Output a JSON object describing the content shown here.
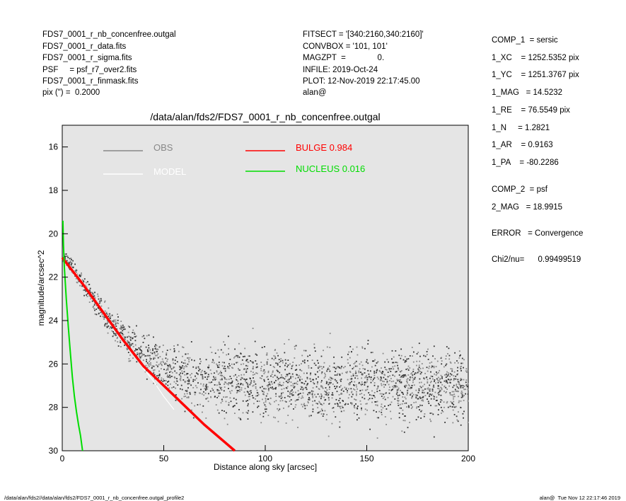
{
  "header_left": [
    "FDS7_0001_r_nb_concenfree.outgal",
    "FDS7_0001_r_data.fits",
    "FDS7_0001_r_sigma.fits",
    "PSF     = psf_r7_over2.fits",
    "FDS7_0001_r_finmask.fits",
    "pix (\") =  0.2000"
  ],
  "header_mid": [
    "FITSECT = '[340:2160,340:2160]'",
    "CONVBOX = '101, 101'",
    "MAGZPT  =              0.",
    "INFILE: 2019-Oct-24",
    "PLOT: 12-Nov-2019 22:17:45.00",
    "alan@"
  ],
  "params": [
    "COMP_1  = sersic",
    "1_XC    = 1252.5352 pix",
    "1_YC    = 1251.3767 pix",
    "1_MAG   = 14.5232",
    "1_RE    = 76.5549 pix",
    "1_N     = 1.2821",
    "1_AR    = 0.9163",
    "1_PA    = -80.2286",
    "COMP_2  = psf",
    "2_MAG   = 18.9915",
    "ERROR   = Convergence",
    "Chi2/nu=      0.99499519"
  ],
  "footer_left": "/data/alan/fds2//data/alan/fds2/FDS7_0001_r_nb_concenfree.outgal_profile2",
  "footer_right": "alan@  Tue Nov 12 22:17:46 2019",
  "chart_data": {
    "type": "scatter",
    "title": "/data/alan/fds2/FDS7_0001_r_nb_concenfree.outgal",
    "xlabel": "Distance along sky [arcsec]",
    "ylabel": "magnitude/arcsec^2",
    "xlim": [
      0,
      200
    ],
    "ylim": [
      30,
      15
    ],
    "y_inverted": true,
    "x_ticks": [
      "0",
      "50",
      "100",
      "150",
      "200"
    ],
    "y_ticks": [
      "16",
      "18",
      "20",
      "22",
      "24",
      "26",
      "28",
      "30"
    ],
    "background_color": "#e5e5e5",
    "legend": [
      {
        "label": "OBS",
        "color": "#888888"
      },
      {
        "label": "MODEL",
        "color": "#ffffff"
      },
      {
        "label": "BULGE  0.984",
        "color": "#ff0000"
      },
      {
        "label": "NUCLEUS  0.016",
        "color": "#00dd00"
      }
    ],
    "series": [
      {
        "name": "OBS",
        "color": "#888888",
        "x": [
          0,
          5,
          10,
          15,
          20,
          25,
          30,
          35,
          40,
          45,
          50,
          60,
          70,
          80,
          100,
          120,
          150,
          200
        ],
        "y": [
          21.0,
          21.6,
          22.3,
          23.0,
          23.6,
          24.2,
          24.7,
          25.2,
          25.6,
          25.9,
          26.2,
          26.5,
          26.7,
          26.8,
          26.9,
          27.0,
          27.0,
          27.0
        ]
      },
      {
        "name": "MODEL",
        "color": "#ffffff",
        "x": [
          0,
          5,
          10,
          15,
          20,
          25,
          30,
          35,
          40,
          45,
          50,
          55
        ],
        "y": [
          21.1,
          21.6,
          22.2,
          22.9,
          23.5,
          24.2,
          24.9,
          25.5,
          26.2,
          26.8,
          27.5,
          28.1
        ]
      },
      {
        "name": "BULGE",
        "color": "#ff0000",
        "x": [
          0,
          10,
          20,
          30,
          40,
          50,
          60,
          70,
          80,
          85
        ],
        "y": [
          21.1,
          22.3,
          23.6,
          24.9,
          26.1,
          27.0,
          27.9,
          28.8,
          29.6,
          30.0
        ]
      },
      {
        "name": "NUCLEUS",
        "color": "#00dd00",
        "x": [
          0.3,
          0.6,
          1,
          2,
          3,
          4,
          5,
          6,
          7,
          8,
          9,
          10
        ],
        "y": [
          19.4,
          20.5,
          21.5,
          23.0,
          24.3,
          25.5,
          26.6,
          27.5,
          28.2,
          28.8,
          29.3,
          30.0
        ]
      }
    ]
  }
}
